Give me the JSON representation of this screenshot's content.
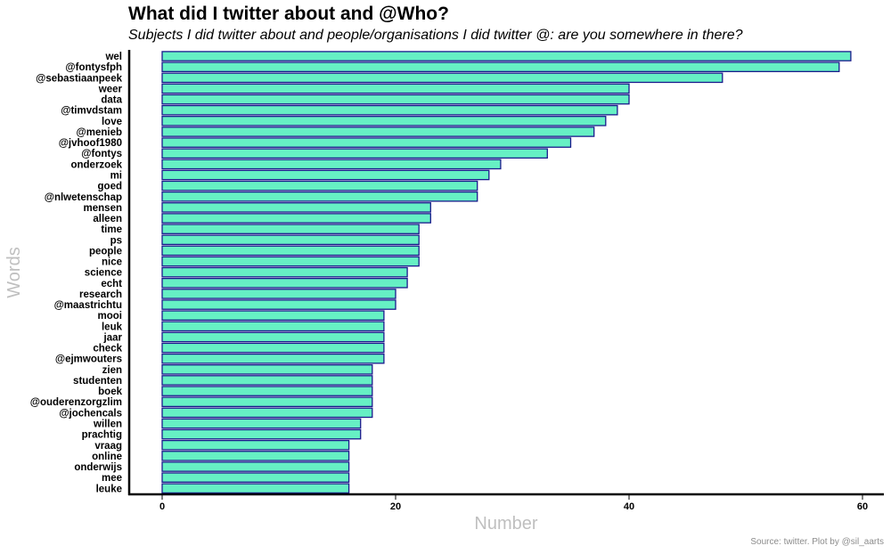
{
  "title": "What did I twitter about and @Who?",
  "subtitle": "Subjects I did twitter about and people/organisations I did twitter @: are you somewhere in there?",
  "caption": "Source: twitter. Plot by @sil_aarts",
  "colors": {
    "bar_fill": "#66F0C4",
    "bar_stroke": "#1A1A8C",
    "axis_title": "#BFBFBF"
  },
  "chart_data": {
    "type": "bar",
    "orientation": "horizontal",
    "xlabel": "Number",
    "ylabel": "Words",
    "xlim": [
      0,
      60
    ],
    "xticks": [
      0,
      20,
      40,
      60
    ],
    "grid": false,
    "categories": [
      "wel",
      "@fontysfph",
      "@sebastiaanpeek",
      "weer",
      "data",
      "@timvdstam",
      "love",
      "@menieb",
      "@jvhoof1980",
      "@fontys",
      "onderzoek",
      "mi",
      "goed",
      "@nlwetenschap",
      "mensen",
      "alleen",
      "time",
      "ps",
      "people",
      "nice",
      "science",
      "echt",
      "research",
      "@maastrichtu",
      "mooi",
      "leuk",
      "jaar",
      "check",
      "@ejmwouters",
      "zien",
      "studenten",
      "boek",
      "@ouderenzorgzlim",
      "@jochencals",
      "willen",
      "prachtig",
      "vraag",
      "online",
      "onderwijs",
      "mee",
      "leuke"
    ],
    "values": [
      59,
      58,
      48,
      40,
      40,
      39,
      38,
      37,
      35,
      33,
      29,
      28,
      27,
      27,
      23,
      23,
      22,
      22,
      22,
      22,
      21,
      21,
      20,
      20,
      19,
      19,
      19,
      19,
      19,
      18,
      18,
      18,
      18,
      18,
      17,
      17,
      16,
      16,
      16,
      16,
      16
    ]
  }
}
